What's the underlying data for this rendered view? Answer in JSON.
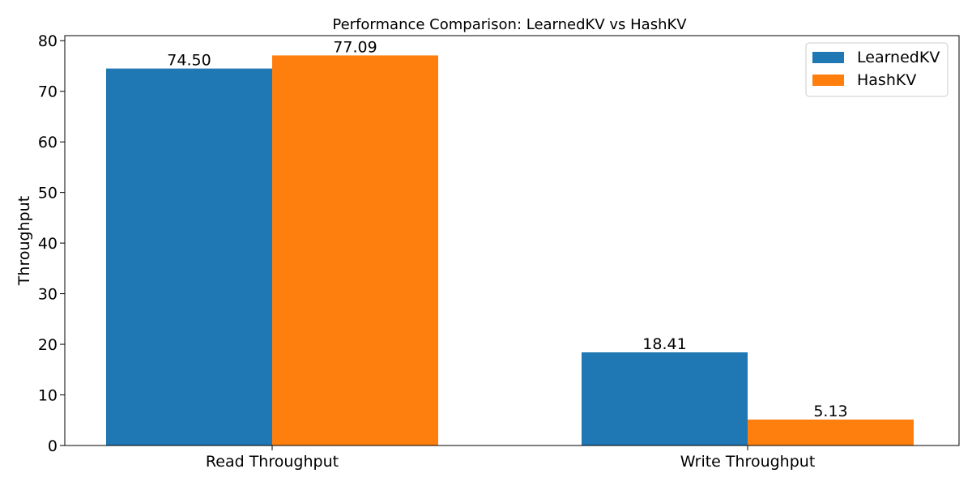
{
  "chart_data": {
    "type": "bar",
    "title": "Performance Comparison: LearnedKV vs HashKV",
    "xlabel": "",
    "ylabel": "Throughput",
    "categories": [
      "Read Throughput",
      "Write Throughput"
    ],
    "series": [
      {
        "name": "LearnedKV",
        "values": [
          74.5,
          18.41
        ],
        "color": "#1f77b4",
        "labels": [
          "74.50",
          "18.41"
        ]
      },
      {
        "name": "HashKV",
        "values": [
          77.09,
          5.13
        ],
        "color": "#ff7f0e",
        "labels": [
          "77.09",
          "5.13"
        ]
      }
    ],
    "ylim": [
      0,
      81
    ],
    "yticks": [
      0,
      10,
      20,
      30,
      40,
      50,
      60,
      70,
      80
    ],
    "grid": false,
    "legend_position": "top-right"
  }
}
